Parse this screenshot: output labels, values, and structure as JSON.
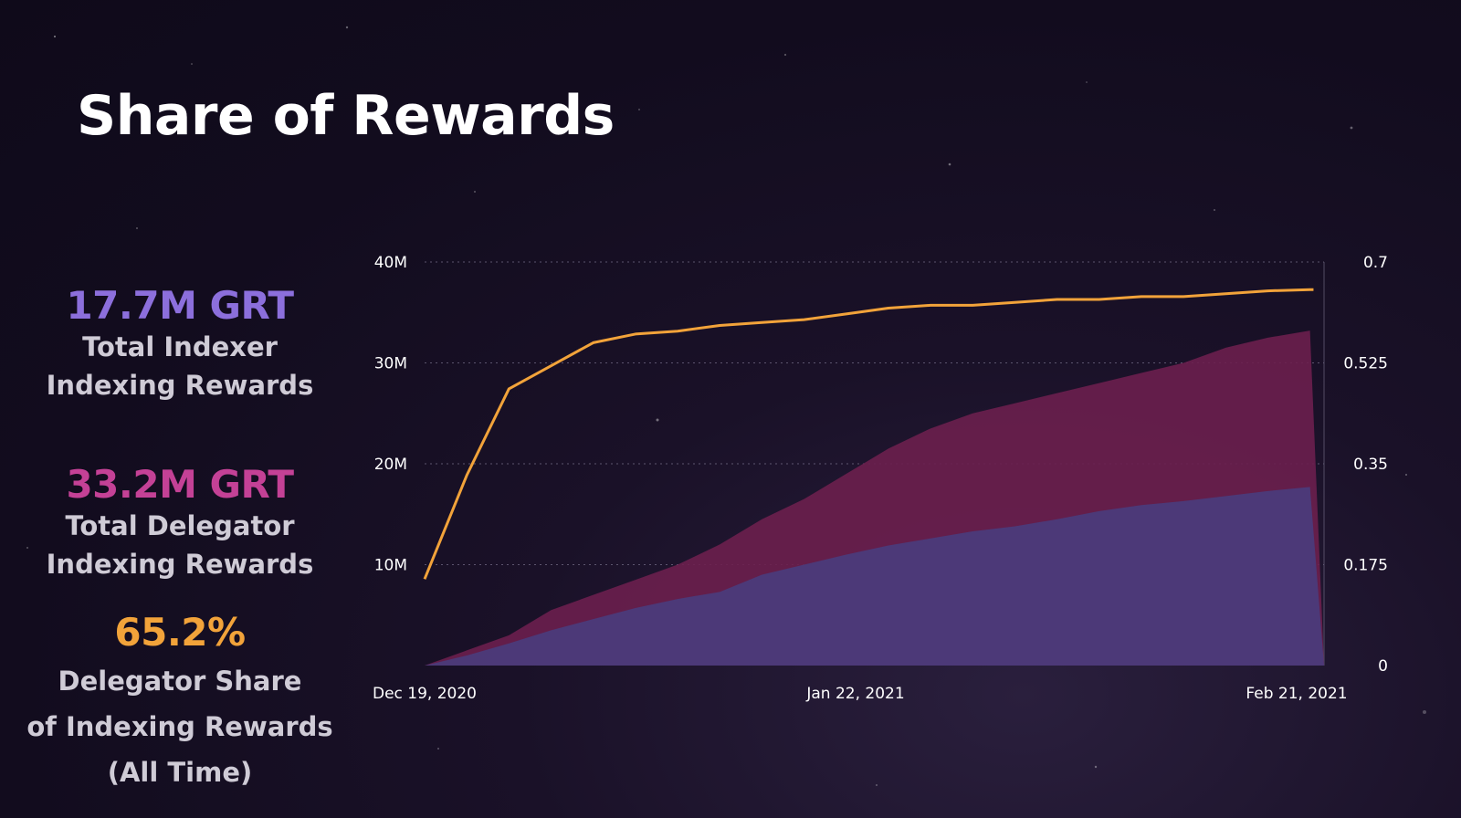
{
  "title": "Share of Rewards",
  "stats": {
    "indexer": {
      "value": "17.7M GRT",
      "label_lines": [
        "Total Indexer",
        "Indexing Rewards"
      ]
    },
    "delegator": {
      "value": "33.2M GRT",
      "label_lines": [
        "Total Delegator",
        "Indexing Rewards"
      ]
    },
    "share": {
      "value": "65.2%",
      "label_lines": [
        "Delegator Share",
        "of Indexing Rewards",
        "(All Time)"
      ]
    }
  },
  "colors": {
    "background": "#120c1e",
    "indexer": "#8c6fdc",
    "delegator": "#c44196",
    "share": "#f2a33a",
    "indexer_area": "#4b3b7a",
    "delegator_area": "#6b1f4e",
    "line": "#f2a33a"
  },
  "chart_data": {
    "type": "area",
    "x_ticks": [
      "Dec 19, 2020",
      "Jan 22, 2021",
      "Feb 21, 2021"
    ],
    "y_left": {
      "ticks": [
        "40M",
        "30M",
        "20M",
        "10M"
      ],
      "ylim": [
        0,
        40000000
      ]
    },
    "y_right": {
      "ticks": [
        "0.7",
        "0.525",
        "0.35",
        "0.175",
        "0"
      ],
      "ylim": [
        0,
        0.7
      ]
    },
    "grid": true,
    "x": [
      "2020-12-19",
      "2020-12-22",
      "2020-12-25",
      "2020-12-28",
      "2020-12-31",
      "2021-01-03",
      "2021-01-06",
      "2021-01-09",
      "2021-01-12",
      "2021-01-15",
      "2021-01-18",
      "2021-01-21",
      "2021-01-24",
      "2021-01-27",
      "2021-01-30",
      "2021-02-02",
      "2021-02-05",
      "2021-02-08",
      "2021-02-11",
      "2021-02-14",
      "2021-02-17",
      "2021-02-20",
      "2021-02-21"
    ],
    "series": [
      {
        "axis": "left",
        "values": [
          0,
          1500000,
          3000000,
          5500000,
          7000000,
          8500000,
          10000000,
          12000000,
          14500000,
          16500000,
          19000000,
          21500000,
          23500000,
          25000000,
          26000000,
          27000000,
          28000000,
          29000000,
          30000000,
          31500000,
          32500000,
          33200000,
          0
        ]
      },
      {
        "axis": "left",
        "values": [
          0,
          1000000,
          2200000,
          3500000,
          4600000,
          5700000,
          6600000,
          7300000,
          9000000,
          10000000,
          11000000,
          11900000,
          12600000,
          13300000,
          13800000,
          14500000,
          15300000,
          15900000,
          16300000,
          16800000,
          17300000,
          17700000,
          0
        ]
      },
      {
        "axis": "right",
        "values": [
          0.15,
          0.33,
          0.48,
          0.52,
          0.56,
          0.575,
          0.58,
          0.59,
          0.595,
          0.6,
          0.61,
          0.62,
          0.625,
          0.625,
          0.63,
          0.635,
          0.635,
          0.64,
          0.64,
          0.645,
          0.65,
          0.652,
          0.652
        ]
      }
    ]
  }
}
